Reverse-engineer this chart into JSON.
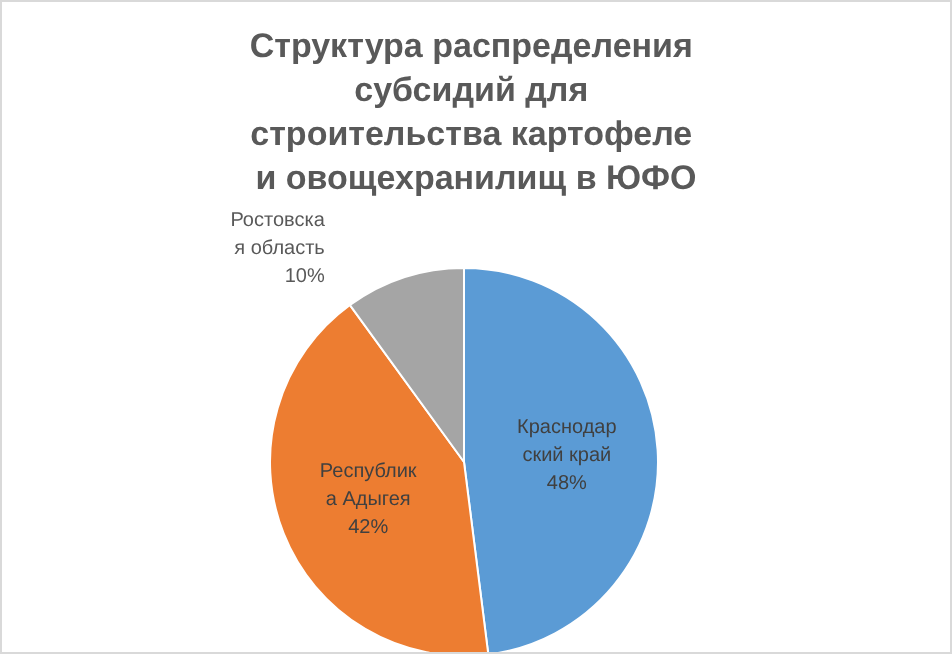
{
  "chart_data": {
    "type": "pie",
    "title": "Структура распределения субсидий для строительства картофеле и овощехранилищ в ЮФО",
    "categories": [
      "Краснодарский край",
      "Республика Адыгея",
      "Ростовская область"
    ],
    "values": [
      48,
      42,
      10
    ],
    "colors": [
      "#5b9bd5",
      "#ed7d31",
      "#a5a5a5"
    ],
    "value_labels": [
      "48%",
      "42%",
      "10%"
    ],
    "legend": false
  }
}
